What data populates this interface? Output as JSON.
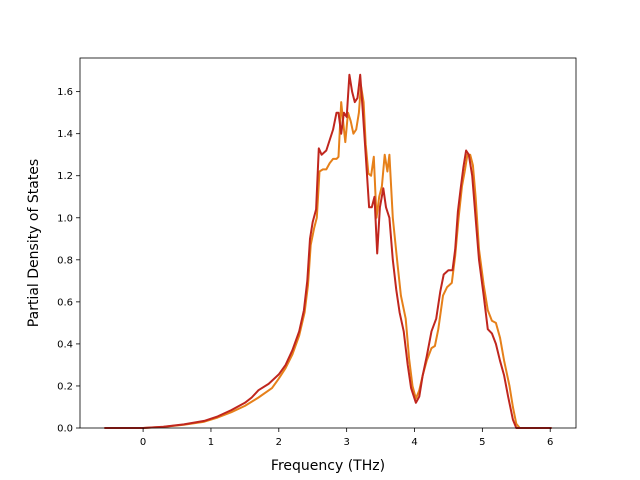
{
  "chart_data": {
    "type": "line",
    "title": "",
    "xlabel": "Frequency (THz)",
    "ylabel": "Partial Density of States",
    "xlim": [
      -0.93,
      6.38
    ],
    "ylim": [
      0,
      1.76
    ],
    "x_ticks": [
      0,
      1,
      2,
      3,
      4,
      5,
      6
    ],
    "y_ticks": [
      0.0,
      0.2,
      0.4,
      0.6,
      0.8,
      1.0,
      1.2,
      1.4,
      1.6
    ],
    "x_tick_labels": [
      "0",
      "1",
      "2",
      "3",
      "4",
      "5",
      "6"
    ],
    "y_tick_labels": [
      "0.0",
      "0.2",
      "0.4",
      "0.6",
      "0.8",
      "1.0",
      "1.2",
      "1.4",
      "1.6"
    ],
    "grid": false,
    "series": [
      {
        "color": "#e6801a",
        "points": [
          [
            -0.57,
            0.0
          ],
          [
            0.0,
            0.0
          ],
          [
            0.3,
            0.005
          ],
          [
            0.6,
            0.015
          ],
          [
            0.9,
            0.03
          ],
          [
            1.1,
            0.05
          ],
          [
            1.3,
            0.075
          ],
          [
            1.5,
            0.105
          ],
          [
            1.7,
            0.145
          ],
          [
            1.9,
            0.19
          ],
          [
            2.0,
            0.235
          ],
          [
            2.1,
            0.285
          ],
          [
            2.2,
            0.35
          ],
          [
            2.3,
            0.44
          ],
          [
            2.38,
            0.55
          ],
          [
            2.43,
            0.68
          ],
          [
            2.47,
            0.87
          ],
          [
            2.52,
            0.95
          ],
          [
            2.56,
            1.0
          ],
          [
            2.6,
            1.22
          ],
          [
            2.65,
            1.23
          ],
          [
            2.7,
            1.23
          ],
          [
            2.75,
            1.26
          ],
          [
            2.8,
            1.28
          ],
          [
            2.85,
            1.28
          ],
          [
            2.88,
            1.29
          ],
          [
            2.92,
            1.55
          ],
          [
            2.95,
            1.45
          ],
          [
            2.98,
            1.36
          ],
          [
            3.02,
            1.5
          ],
          [
            3.06,
            1.46
          ],
          [
            3.1,
            1.4
          ],
          [
            3.14,
            1.42
          ],
          [
            3.18,
            1.5
          ],
          [
            3.21,
            1.63
          ],
          [
            3.25,
            1.55
          ],
          [
            3.28,
            1.35
          ],
          [
            3.32,
            1.21
          ],
          [
            3.36,
            1.2
          ],
          [
            3.4,
            1.29
          ],
          [
            3.44,
            1.0
          ],
          [
            3.48,
            1.1
          ],
          [
            3.52,
            1.15
          ],
          [
            3.56,
            1.3
          ],
          [
            3.6,
            1.22
          ],
          [
            3.63,
            1.3
          ],
          [
            3.68,
            1.0
          ],
          [
            3.75,
            0.78
          ],
          [
            3.8,
            0.63
          ],
          [
            3.87,
            0.52
          ],
          [
            3.92,
            0.33
          ],
          [
            3.97,
            0.2
          ],
          [
            4.02,
            0.14
          ],
          [
            4.07,
            0.18
          ],
          [
            4.12,
            0.25
          ],
          [
            4.18,
            0.32
          ],
          [
            4.25,
            0.38
          ],
          [
            4.3,
            0.39
          ],
          [
            4.35,
            0.47
          ],
          [
            4.42,
            0.63
          ],
          [
            4.48,
            0.67
          ],
          [
            4.55,
            0.69
          ],
          [
            4.6,
            0.82
          ],
          [
            4.65,
            1.0
          ],
          [
            4.7,
            1.15
          ],
          [
            4.74,
            1.22
          ],
          [
            4.78,
            1.3
          ],
          [
            4.82,
            1.3
          ],
          [
            4.86,
            1.25
          ],
          [
            4.9,
            1.1
          ],
          [
            4.95,
            0.85
          ],
          [
            5.02,
            0.68
          ],
          [
            5.08,
            0.56
          ],
          [
            5.14,
            0.51
          ],
          [
            5.2,
            0.5
          ],
          [
            5.26,
            0.43
          ],
          [
            5.32,
            0.32
          ],
          [
            5.4,
            0.2
          ],
          [
            5.45,
            0.1
          ],
          [
            5.5,
            0.02
          ],
          [
            5.55,
            0.0
          ],
          [
            6.02,
            0.0
          ]
        ]
      },
      {
        "color": "#c0261e",
        "points": [
          [
            -0.57,
            0.0
          ],
          [
            0.0,
            0.0
          ],
          [
            0.3,
            0.006
          ],
          [
            0.6,
            0.017
          ],
          [
            0.9,
            0.034
          ],
          [
            1.1,
            0.055
          ],
          [
            1.3,
            0.085
          ],
          [
            1.5,
            0.12
          ],
          [
            1.6,
            0.145
          ],
          [
            1.7,
            0.18
          ],
          [
            1.85,
            0.21
          ],
          [
            2.0,
            0.255
          ],
          [
            2.1,
            0.3
          ],
          [
            2.2,
            0.37
          ],
          [
            2.3,
            0.46
          ],
          [
            2.37,
            0.56
          ],
          [
            2.42,
            0.7
          ],
          [
            2.46,
            0.9
          ],
          [
            2.5,
            0.98
          ],
          [
            2.55,
            1.04
          ],
          [
            2.59,
            1.33
          ],
          [
            2.63,
            1.3
          ],
          [
            2.7,
            1.32
          ],
          [
            2.75,
            1.37
          ],
          [
            2.8,
            1.42
          ],
          [
            2.85,
            1.5
          ],
          [
            2.88,
            1.5
          ],
          [
            2.92,
            1.4
          ],
          [
            2.96,
            1.5
          ],
          [
            3.0,
            1.48
          ],
          [
            3.04,
            1.68
          ],
          [
            3.08,
            1.6
          ],
          [
            3.12,
            1.55
          ],
          [
            3.16,
            1.57
          ],
          [
            3.2,
            1.68
          ],
          [
            3.24,
            1.5
          ],
          [
            3.28,
            1.3
          ],
          [
            3.33,
            1.05
          ],
          [
            3.37,
            1.05
          ],
          [
            3.41,
            1.1
          ],
          [
            3.45,
            0.83
          ],
          [
            3.49,
            1.05
          ],
          [
            3.54,
            1.14
          ],
          [
            3.58,
            1.05
          ],
          [
            3.63,
            1.0
          ],
          [
            3.68,
            0.8
          ],
          [
            3.73,
            0.66
          ],
          [
            3.78,
            0.55
          ],
          [
            3.84,
            0.46
          ],
          [
            3.9,
            0.3
          ],
          [
            3.95,
            0.19
          ],
          [
            4.02,
            0.12
          ],
          [
            4.07,
            0.15
          ],
          [
            4.12,
            0.25
          ],
          [
            4.18,
            0.34
          ],
          [
            4.25,
            0.46
          ],
          [
            4.32,
            0.52
          ],
          [
            4.38,
            0.65
          ],
          [
            4.43,
            0.73
          ],
          [
            4.5,
            0.75
          ],
          [
            4.56,
            0.75
          ],
          [
            4.6,
            0.85
          ],
          [
            4.64,
            1.03
          ],
          [
            4.68,
            1.14
          ],
          [
            4.72,
            1.24
          ],
          [
            4.76,
            1.32
          ],
          [
            4.8,
            1.3
          ],
          [
            4.85,
            1.2
          ],
          [
            4.9,
            1.0
          ],
          [
            4.95,
            0.8
          ],
          [
            5.02,
            0.63
          ],
          [
            5.08,
            0.47
          ],
          [
            5.14,
            0.45
          ],
          [
            5.2,
            0.4
          ],
          [
            5.26,
            0.32
          ],
          [
            5.32,
            0.25
          ],
          [
            5.38,
            0.15
          ],
          [
            5.45,
            0.04
          ],
          [
            5.5,
            0.0
          ],
          [
            6.02,
            0.0
          ]
        ]
      }
    ]
  }
}
